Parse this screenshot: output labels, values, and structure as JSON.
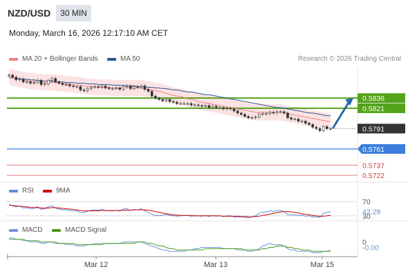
{
  "header": {
    "pair": "NZD/USD",
    "timeframe": "30 MIN",
    "datetime": "Monday, March 16, 2026 12:17:10 AM CET",
    "credit": "Research © 2026 Trading Central"
  },
  "colors": {
    "bollinger": "#f08080",
    "ma50": "#2c5697",
    "resistance": "#54a31a",
    "current": "#333333",
    "pivot": "#3b7ddd",
    "support": "#d73b3b",
    "rsi": "#5c8ddb",
    "rsi_ma": "#cc0000",
    "macd": "#6b96dd",
    "macd_signal": "#4a9a1a",
    "arrow": "#2a6aa8"
  },
  "chart_data": [
    {
      "type": "candlestick",
      "legend": [
        "MA 20 + Bollinger Bands",
        "MA 50"
      ],
      "xlabel": "",
      "ylabel": "",
      "x_ticks": [
        "Mar 12",
        "Mar 13",
        "Mar 15"
      ],
      "ylim": [
        0.5714,
        0.5882
      ],
      "close": [
        0.587,
        0.5867,
        0.5863,
        0.5864,
        0.586,
        0.586,
        0.5858,
        0.5859,
        0.5862,
        0.5856,
        0.5857,
        0.5862,
        0.5865,
        0.586,
        0.5858,
        0.5856,
        0.5856,
        0.5854,
        0.5853,
        0.5853,
        0.5848,
        0.5847,
        0.585,
        0.5852,
        0.5853,
        0.5852,
        0.5854,
        0.5851,
        0.585,
        0.585,
        0.5851,
        0.5849,
        0.5853,
        0.5854,
        0.585,
        0.5853,
        0.5852,
        0.5854,
        0.5849,
        0.5846,
        0.5839,
        0.5836,
        0.5834,
        0.5832,
        0.5834,
        0.5831,
        0.583,
        0.5828,
        0.5828,
        0.5828,
        0.5828,
        0.5826,
        0.5826,
        0.5825,
        0.5824,
        0.5825,
        0.5822,
        0.5824,
        0.5822,
        0.5822,
        0.582,
        0.5821,
        0.582,
        0.5817,
        0.5814,
        0.5812,
        0.5809,
        0.5807,
        0.5807,
        0.5808,
        0.5812,
        0.5813,
        0.5813,
        0.5815,
        0.5814,
        0.5816,
        0.5816,
        0.5814,
        0.5807,
        0.5805,
        0.5805,
        0.5802,
        0.5802,
        0.5799,
        0.5797,
        0.5793,
        0.5791,
        0.5788,
        0.5794,
        0.5791,
        0.5791
      ],
      "open": [
        0.5869,
        0.587,
        0.5867,
        0.5863,
        0.5864,
        0.586,
        0.586,
        0.5858,
        0.5859,
        0.5862,
        0.5856,
        0.5857,
        0.5862,
        0.5865,
        0.586,
        0.5858,
        0.5856,
        0.5856,
        0.5854,
        0.5853,
        0.5853,
        0.5848,
        0.5847,
        0.585,
        0.5852,
        0.5853,
        0.5852,
        0.5854,
        0.5851,
        0.585,
        0.585,
        0.5851,
        0.5849,
        0.5853,
        0.5854,
        0.585,
        0.5853,
        0.5852,
        0.5854,
        0.5849,
        0.5846,
        0.5839,
        0.5836,
        0.5834,
        0.5832,
        0.5834,
        0.5831,
        0.583,
        0.5828,
        0.5828,
        0.5828,
        0.5828,
        0.5826,
        0.5826,
        0.5825,
        0.5824,
        0.5825,
        0.5822,
        0.5824,
        0.5822,
        0.5822,
        0.582,
        0.5821,
        0.582,
        0.5817,
        0.5814,
        0.5812,
        0.5809,
        0.5807,
        0.5807,
        0.5808,
        0.5812,
        0.5813,
        0.5813,
        0.5815,
        0.5814,
        0.5816,
        0.5816,
        0.5814,
        0.5807,
        0.5805,
        0.5805,
        0.5802,
        0.5802,
        0.5799,
        0.5797,
        0.5793,
        0.5791,
        0.5788,
        0.5794,
        0.5791
      ],
      "ma20": [
        0.5867,
        0.5866,
        0.5865,
        0.5864,
        0.5863,
        0.5862,
        0.5861,
        0.5861,
        0.586,
        0.586,
        0.5859,
        0.5859,
        0.5859,
        0.5859,
        0.5858,
        0.5858,
        0.5857,
        0.5857,
        0.5856,
        0.5855,
        0.5855,
        0.5854,
        0.5853,
        0.5853,
        0.5852,
        0.5852,
        0.5852,
        0.5852,
        0.5852,
        0.5851,
        0.5851,
        0.5851,
        0.5851,
        0.5851,
        0.5851,
        0.5851,
        0.5851,
        0.5851,
        0.585,
        0.5849,
        0.5848,
        0.5847,
        0.5846,
        0.5845,
        0.5843,
        0.5842,
        0.584,
        0.5839,
        0.5838,
        0.5837,
        0.5835,
        0.5834,
        0.5833,
        0.5831,
        0.583,
        0.5829,
        0.5828,
        0.5827,
        0.5826,
        0.5825,
        0.5824,
        0.5823,
        0.5822,
        0.5821,
        0.582,
        0.5819,
        0.5818,
        0.5817,
        0.5816,
        0.5815,
        0.5815,
        0.5815,
        0.5815,
        0.5815,
        0.5815,
        0.5815,
        0.5815,
        0.5814,
        0.5813,
        0.5812,
        0.5811,
        0.581,
        0.5809,
        0.5808,
        0.5807,
        0.5806,
        0.5805,
        0.5804,
        0.5803,
        0.5802,
        0.5801
      ],
      "ma50": [
        0.5866,
        0.5866,
        0.5865,
        0.5865,
        0.5864,
        0.5864,
        0.5863,
        0.5863,
        0.5862,
        0.5862,
        0.5861,
        0.5861,
        0.5861,
        0.586,
        0.586,
        0.586,
        0.5859,
        0.5859,
        0.5859,
        0.5858,
        0.5858,
        0.5858,
        0.5857,
        0.5857,
        0.5857,
        0.5856,
        0.5856,
        0.5856,
        0.5856,
        0.5855,
        0.5855,
        0.5855,
        0.5855,
        0.5854,
        0.5854,
        0.5854,
        0.5853,
        0.5853,
        0.5853,
        0.5852,
        0.5852,
        0.5851,
        0.5851,
        0.585,
        0.585,
        0.5849,
        0.5848,
        0.5848,
        0.5847,
        0.5846,
        0.5845,
        0.5845,
        0.5844,
        0.5843,
        0.5842,
        0.5841,
        0.5841,
        0.584,
        0.5839,
        0.5838,
        0.5837,
        0.5836,
        0.5835,
        0.5834,
        0.5833,
        0.5832,
        0.5831,
        0.583,
        0.5829,
        0.5828,
        0.5827,
        0.5826,
        0.5825,
        0.5824,
        0.5823,
        0.5822,
        0.5822,
        0.5821,
        0.582,
        0.5819,
        0.5818,
        0.5817,
        0.5816,
        0.5815,
        0.5814,
        0.5814,
        0.5813,
        0.5812,
        0.5811,
        0.581,
        0.581
      ],
      "band_width": 0.0012,
      "levels": [
        {
          "name": "resistance-2",
          "value": 0.5836,
          "label": "0.5836",
          "kind": "resistance"
        },
        {
          "name": "resistance-1",
          "value": 0.5821,
          "label": "0.5821",
          "kind": "resistance"
        },
        {
          "name": "last-price",
          "value": 0.5791,
          "label": "0.5791",
          "kind": "current"
        },
        {
          "name": "pivot",
          "value": 0.5761,
          "label": "0.5761",
          "kind": "pivot"
        },
        {
          "name": "support-1",
          "value": 0.5737,
          "label": "0.5737",
          "kind": "support"
        },
        {
          "name": "support-2",
          "value": 0.5722,
          "label": "0.5722",
          "kind": "support"
        }
      ]
    },
    {
      "type": "line",
      "legend": [
        "RSI",
        "9MA"
      ],
      "ylim": [
        20,
        80
      ],
      "tick_labels": [
        {
          "value": 70,
          "label": "70"
        },
        {
          "value": 42.29,
          "label": "42.29"
        },
        {
          "value": 30,
          "label": "30"
        }
      ],
      "rsi": [
        62,
        58,
        55,
        57,
        52,
        53,
        50,
        51,
        56,
        48,
        50,
        55,
        58,
        52,
        49,
        47,
        47,
        45,
        44,
        44,
        40,
        39,
        43,
        46,
        47,
        46,
        49,
        45,
        44,
        44,
        46,
        43,
        49,
        50,
        45,
        48,
        47,
        50,
        44,
        40,
        34,
        31,
        30,
        32,
        34,
        31,
        30,
        29,
        30,
        31,
        31,
        29,
        30,
        30,
        29,
        31,
        28,
        31,
        29,
        30,
        28,
        30,
        30,
        27,
        26,
        27,
        26,
        25,
        27,
        30,
        37,
        40,
        41,
        44,
        42,
        45,
        45,
        42,
        34,
        32,
        33,
        31,
        32,
        29,
        30,
        27,
        27,
        26,
        36,
        40,
        42
      ],
      "ma9": [
        60,
        59,
        58,
        57,
        56,
        55,
        54,
        53,
        53,
        52,
        52,
        52,
        53,
        53,
        52,
        51,
        50,
        49,
        48,
        47,
        45,
        44,
        44,
        44,
        44,
        44,
        45,
        45,
        45,
        45,
        45,
        45,
        46,
        46,
        46,
        47,
        47,
        47,
        47,
        46,
        44,
        42,
        40,
        38,
        36,
        34,
        33,
        32,
        31,
        31,
        31,
        31,
        30,
        30,
        30,
        30,
        30,
        30,
        30,
        30,
        29,
        29,
        29,
        29,
        29,
        28,
        28,
        27,
        27,
        28,
        29,
        31,
        33,
        35,
        37,
        39,
        41,
        42,
        42,
        41,
        40,
        38,
        36,
        34,
        33,
        31,
        30,
        29,
        29,
        30,
        31
      ]
    },
    {
      "type": "line",
      "legend": [
        "MACD",
        "MACD Signal"
      ],
      "ylim": [
        -0.0011,
        0.0004
      ],
      "tick_labels": [
        {
          "value": 0,
          "label": "0"
        },
        {
          "value": -0.0004,
          "label": "-0.00"
        }
      ],
      "macd": [
        0.0003,
        0.0003,
        0.0002,
        0.0002,
        0.0001,
        0.0001,
        0.0,
        0.0,
        0.0,
        -0.0001,
        -0.0001,
        0.0,
        0.0,
        -0.0001,
        -0.0001,
        -0.0001,
        -0.0002,
        -0.0002,
        -0.0002,
        -0.0003,
        -0.0003,
        -0.0003,
        -0.0002,
        -0.0002,
        -0.0001,
        -0.0001,
        -0.0001,
        -0.0001,
        -0.0001,
        -0.0001,
        -0.0001,
        -0.0001,
        0.0,
        0.0,
        0.0,
        0.0,
        0.0,
        0.0,
        -0.0001,
        -0.0002,
        -0.0003,
        -0.0004,
        -0.0005,
        -0.0006,
        -0.0006,
        -0.0007,
        -0.0007,
        -0.0007,
        -0.0007,
        -0.0007,
        -0.0006,
        -0.0006,
        -0.0005,
        -0.0005,
        -0.0004,
        -0.0004,
        -0.0004,
        -0.0004,
        -0.0004,
        -0.0004,
        -0.0005,
        -0.0005,
        -0.0005,
        -0.0005,
        -0.0006,
        -0.0006,
        -0.0006,
        -0.0007,
        -0.0007,
        -0.0006,
        -0.0005,
        -0.0003,
        -0.0002,
        -0.0001,
        -0.0002,
        -0.0002,
        -0.0002,
        -0.0003,
        -0.0005,
        -0.0006,
        -0.0006,
        -0.0007,
        -0.0007,
        -0.0007,
        -0.0007,
        -0.0008,
        -0.0008,
        -0.0008,
        -0.0007,
        -0.0007,
        -0.0006
      ],
      "signal": [
        0.0002,
        0.0002,
        0.0002,
        0.0002,
        0.0002,
        0.0001,
        0.0001,
        0.0001,
        0.0001,
        0.0,
        0.0,
        0.0,
        0.0,
        0.0,
        -0.0001,
        -0.0001,
        -0.0001,
        -0.0001,
        -0.0001,
        -0.0002,
        -0.0002,
        -0.0002,
        -0.0002,
        -0.0002,
        -0.0002,
        -0.0002,
        -0.0002,
        -0.0001,
        -0.0001,
        -0.0001,
        -0.0001,
        -0.0001,
        -0.0001,
        -0.0001,
        -0.0001,
        -0.0001,
        0.0,
        0.0,
        0.0,
        -0.0001,
        -0.0001,
        -0.0002,
        -0.0003,
        -0.0003,
        -0.0004,
        -0.0005,
        -0.0005,
        -0.0006,
        -0.0006,
        -0.0006,
        -0.0006,
        -0.0006,
        -0.0006,
        -0.0006,
        -0.0006,
        -0.0005,
        -0.0005,
        -0.0005,
        -0.0005,
        -0.0005,
        -0.0005,
        -0.0005,
        -0.0005,
        -0.0005,
        -0.0005,
        -0.0005,
        -0.0006,
        -0.0006,
        -0.0006,
        -0.0006,
        -0.0006,
        -0.0005,
        -0.0005,
        -0.0004,
        -0.0004,
        -0.0003,
        -0.0003,
        -0.0003,
        -0.0004,
        -0.0004,
        -0.0005,
        -0.0005,
        -0.0006,
        -0.0006,
        -0.0006,
        -0.0007,
        -0.0007,
        -0.0007,
        -0.0007,
        -0.0007,
        -0.0007
      ]
    }
  ]
}
